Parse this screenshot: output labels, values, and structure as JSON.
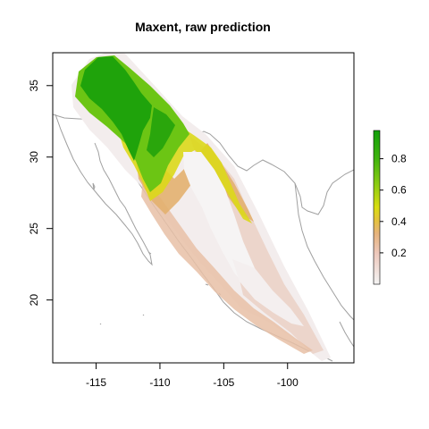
{
  "title": "Maxent, raw prediction",
  "axes": {
    "x_ticks": [
      {
        "value": -115,
        "label": "-115"
      },
      {
        "value": -110,
        "label": "-110"
      },
      {
        "value": -105,
        "label": "-105"
      },
      {
        "value": -100,
        "label": "-100"
      }
    ],
    "y_ticks": [
      {
        "value": 20,
        "label": "20"
      },
      {
        "value": 25,
        "label": "25"
      },
      {
        "value": 30,
        "label": "30"
      },
      {
        "value": 35,
        "label": "35"
      }
    ],
    "xlim": [
      -118.4,
      -94.8
    ],
    "ylim": [
      15.6,
      37.3
    ]
  },
  "legend": {
    "ticks": [
      {
        "value": 0.2,
        "label": "0.2"
      },
      {
        "value": 0.4,
        "label": "0.4"
      },
      {
        "value": 0.6,
        "label": "0.6"
      },
      {
        "value": 0.8,
        "label": "0.8"
      }
    ],
    "range": [
      0.0,
      0.98
    ],
    "colors": [
      "#f2f2f2",
      "#eecfc6",
      "#e8b07e",
      "#e6d02a",
      "#a8d418",
      "#4cb812",
      "#15a10a"
    ]
  },
  "colors": {
    "border": "#a0a0a0",
    "frame": "#000000"
  }
}
